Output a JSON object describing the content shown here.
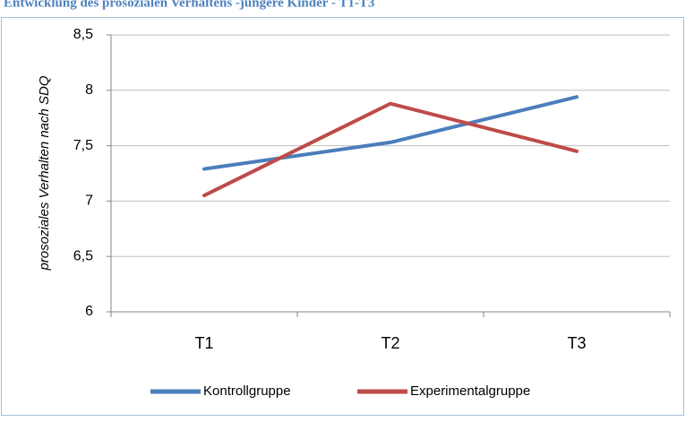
{
  "chart_data": {
    "type": "line",
    "title": "Entwicklung des prosozialen Verhaltens -jüngere Kinder - T1-T3",
    "y_label": "prosoziales Verhalten nach SDQ",
    "categories": [
      "T1",
      "T2",
      "T3"
    ],
    "series": [
      {
        "name": "Kontrollgruppe",
        "color": "#4a7ebb",
        "values": [
          7.29,
          7.53,
          7.94
        ]
      },
      {
        "name": "Experimentalgruppe",
        "color": "#be4b48",
        "values": [
          7.05,
          7.88,
          7.45
        ]
      }
    ],
    "ylim": [
      6,
      8.5
    ],
    "yticks": [
      6,
      {
        "value": 6.5,
        "label": "6,5"
      },
      7,
      {
        "value": 7.5,
        "label": "7,5"
      },
      8,
      {
        "value": 8.5,
        "label": "8,5"
      }
    ],
    "grid": true,
    "legend": "bottom"
  }
}
